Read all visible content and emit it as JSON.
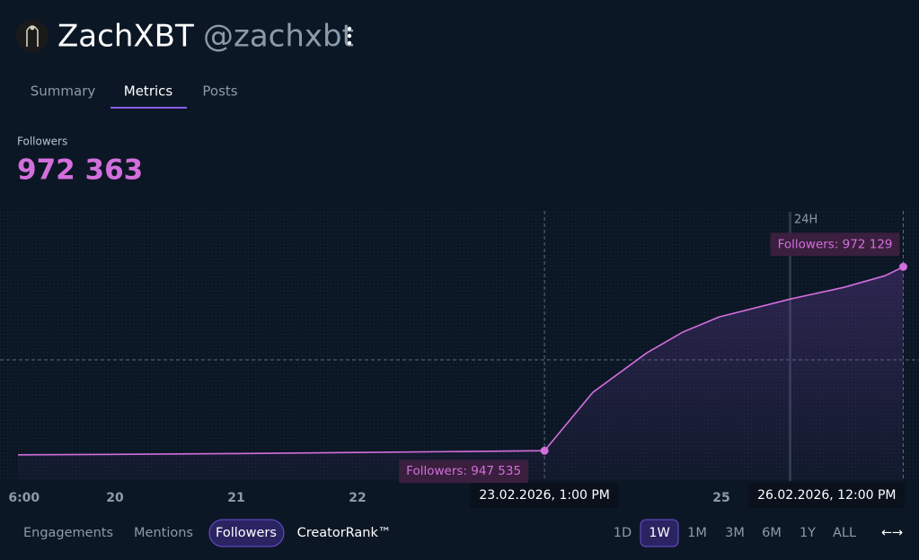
{
  "header": {
    "name": "ZachXBT",
    "handle": "@zachxbt"
  },
  "tabs": [
    "Summary",
    "Metrics",
    "Posts"
  ],
  "metric": {
    "label": "Followers",
    "value": "972 363"
  },
  "chart_data": {
    "type": "line",
    "x": [
      19.2,
      20,
      21,
      22,
      23,
      23.5417,
      23.94,
      24.385,
      24.68,
      24.98,
      25.57,
      26.01,
      26.35,
      26.5
    ],
    "xlim": [
      19.2,
      26.6
    ],
    "xticks": [
      {
        "value": 19.25,
        "label": "6:00"
      },
      20,
      21,
      22,
      25
    ],
    "ylim": [
      943600,
      979600
    ],
    "series": [
      {
        "color": "#d36fdc",
        "values": [
          946990,
          947050,
          947150,
          947300,
          947450,
          947535,
          955335,
          960615,
          963375,
          965415,
          967815,
          969375,
          970935,
          972129
        ]
      }
    ],
    "annotations": [
      {
        "x": 23.5417,
        "value": 947535,
        "value_label": "Followers: 947 535",
        "date": "23.02.2026, 1:00 PM"
      },
      {
        "x": 26.5,
        "value": 972129,
        "value_label": "Followers: 972 129",
        "date": "26.02.2026, 12:00 PM"
      }
    ],
    "marker_label": "24H"
  },
  "footer": {
    "metrics": [
      "Engagements",
      "Mentions",
      "Followers",
      "CreatorRank™"
    ],
    "ranges": [
      "1D",
      "1W",
      "1M",
      "3M",
      "6M",
      "1Y",
      "ALL"
    ],
    "toggle": "←→"
  }
}
